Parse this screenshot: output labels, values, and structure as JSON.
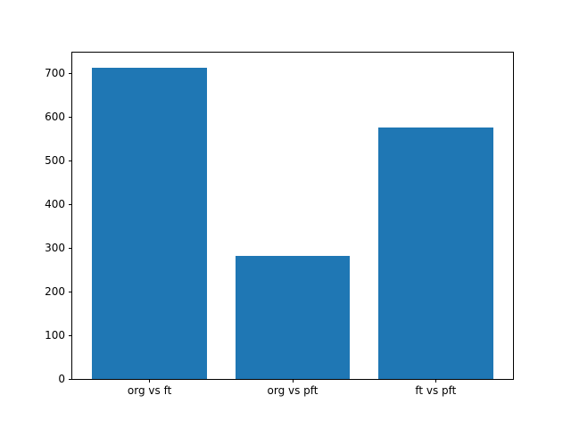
{
  "chart_data": {
    "type": "bar",
    "title": "",
    "xlabel": "",
    "ylabel": "",
    "categories": [
      "org vs ft",
      "org vs pft",
      "ft vs pft"
    ],
    "values": [
      712,
      281,
      575
    ],
    "bar_color": "#1f77b4",
    "ylim": [
      0,
      747
    ],
    "yticks": [
      0,
      100,
      200,
      300,
      400,
      500,
      600,
      700
    ],
    "bar_width_fraction": 0.8,
    "grid": false,
    "legend": "none"
  }
}
